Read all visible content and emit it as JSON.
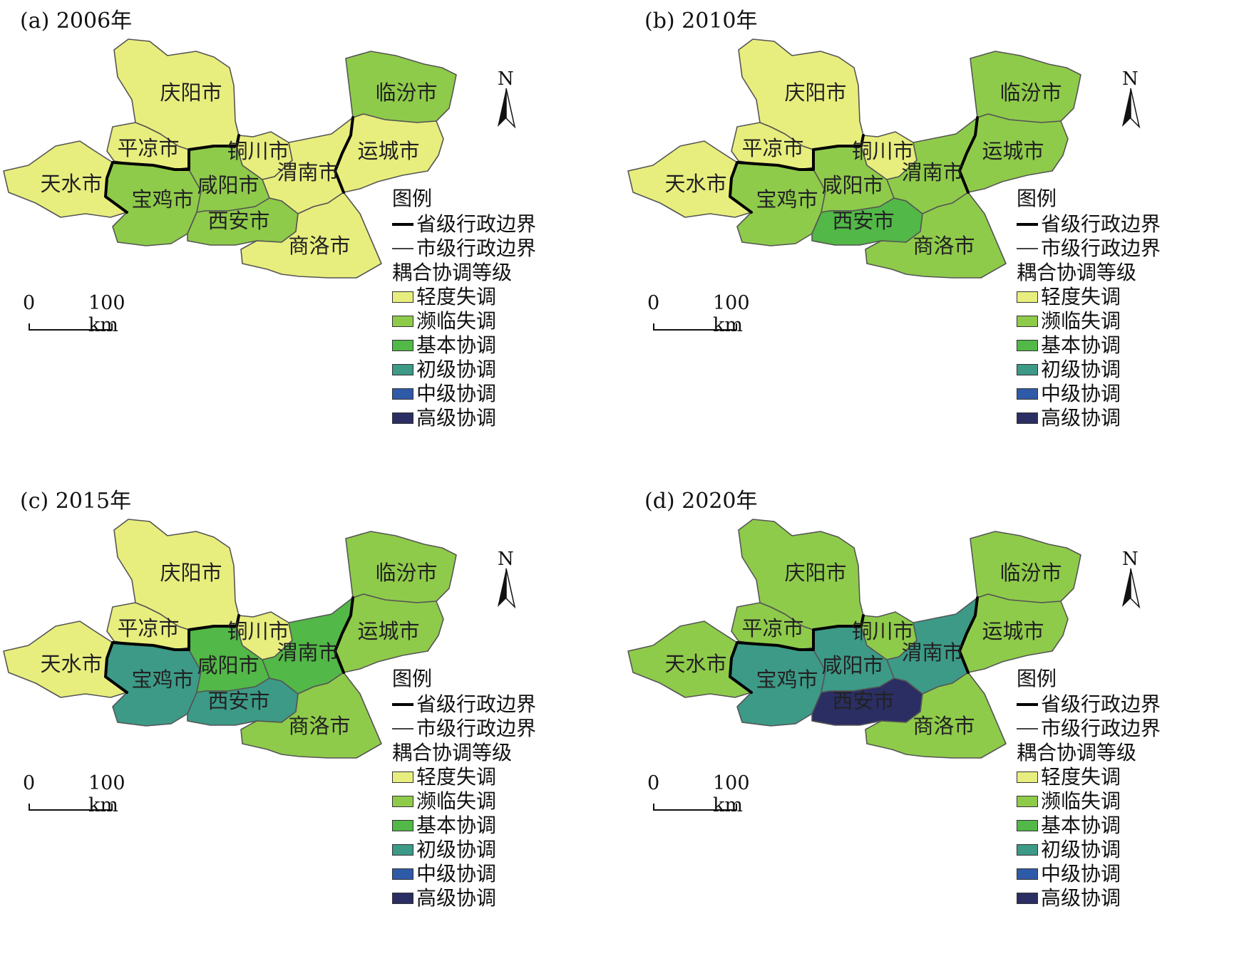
{
  "colors": {
    "level_1": "#e8ee7d",
    "level_2": "#8fcb4a",
    "level_3": "#52b847",
    "level_4": "#3c9a87",
    "level_5": "#2f5aa8",
    "level_6": "#2b2e63"
  },
  "cities": [
    "天水市",
    "平凉市",
    "庆阳市",
    "宝鸡市",
    "咸阳市",
    "铜川市",
    "西安市",
    "渭南市",
    "商洛市",
    "临汾市",
    "运城市"
  ],
  "panels": [
    {
      "title": "(a) 2006年",
      "levels": {
        "天水市": 1,
        "平凉市": 1,
        "庆阳市": 1,
        "宝鸡市": 2,
        "咸阳市": 2,
        "铜川市": 1,
        "西安市": 2,
        "渭南市": 1,
        "商洛市": 1,
        "临汾市": 2,
        "运城市": 1
      }
    },
    {
      "title": "(b) 2010年",
      "levels": {
        "天水市": 1,
        "平凉市": 1,
        "庆阳市": 1,
        "宝鸡市": 2,
        "咸阳市": 2,
        "铜川市": 1,
        "西安市": 3,
        "渭南市": 2,
        "商洛市": 2,
        "临汾市": 2,
        "运城市": 2
      }
    },
    {
      "title": "(c) 2015年",
      "levels": {
        "天水市": 1,
        "平凉市": 1,
        "庆阳市": 1,
        "宝鸡市": 4,
        "咸阳市": 3,
        "铜川市": 1,
        "西安市": 4,
        "渭南市": 3,
        "商洛市": 2,
        "临汾市": 2,
        "运城市": 2
      }
    },
    {
      "title": "(d) 2020年",
      "levels": {
        "天水市": 2,
        "平凉市": 2,
        "庆阳市": 2,
        "宝鸡市": 4,
        "咸阳市": 4,
        "铜川市": 2,
        "西安市": 6,
        "渭南市": 4,
        "商洛市": 2,
        "临汾市": 2,
        "运城市": 2
      }
    }
  ],
  "legend": {
    "title": "图例",
    "province_border": "省级行政边界",
    "city_border": "市级行政边界",
    "category_title": "耦合协调等级",
    "levels": [
      "轻度失调",
      "濒临失调",
      "基本协调",
      "初级协调",
      "中级协调",
      "高级协调"
    ]
  },
  "north_label": "N",
  "scale": {
    "zero": "0",
    "distance": "100 km"
  }
}
